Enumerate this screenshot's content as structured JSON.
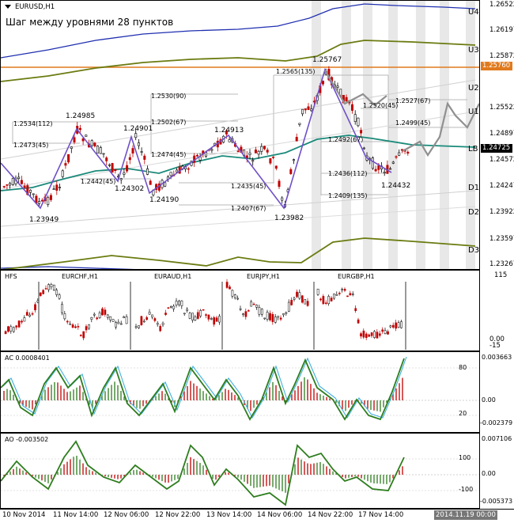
{
  "main": {
    "symbol": "EURUSD,H1",
    "subtitle": "Шаг между уровнями 28 пунктов",
    "axis_prices": [
      "1.26522",
      "1.26197",
      "1.25872",
      "1.25522",
      "1.24897",
      "1.24572",
      "1.24247",
      "1.23922",
      "1.23597",
      "1.23267"
    ],
    "axis_labels": [
      "U4",
      "U3",
      "U2",
      "U1",
      "LB",
      "D1",
      "D2",
      "D3"
    ],
    "current_price": "1.24725",
    "orange_level": "1.25760",
    "extremes": [
      "1.24985",
      "1.24901",
      "1.24913",
      "1.25767",
      "1.23949",
      "1.24302",
      "1.24190",
      "1.23982",
      "1.24432"
    ],
    "level_labels": [
      "1.2534(112)",
      "1.2473(45)",
      "1.2442(45)",
      "1.2530(90)",
      "1.2502(67)",
      "1.2474(45)",
      "1.2435(45)",
      "1.2407(67)",
      "1.2565(135)",
      "1.2520(45)",
      "1.2527(67)",
      "1.2499(45)",
      "1.2492(67)",
      "1.2436(112)",
      "1.2409(135)"
    ]
  },
  "fx": {
    "title": "HFS",
    "pairs": [
      "EURCHF,H1",
      "EURAUD,H1",
      "EURJPY,H1",
      "EURGBP,H1"
    ],
    "axis": [
      "115",
      "0.00",
      "-15"
    ]
  },
  "ac": {
    "title": "AC 0.0008401",
    "axis": [
      "0.003663",
      "80",
      "0.00",
      "20",
      "-0.002379"
    ]
  },
  "ao": {
    "title": "AO -0.003502",
    "axis": [
      "0.007106",
      "100",
      "0.00",
      "-100",
      "-0.005373"
    ]
  },
  "time_axis": [
    "10 Nov 2014",
    "11 Nov 14:00",
    "12 Nov 06:00",
    "12 Nov 22:00",
    "13 Nov 14:00",
    "14 Nov 06:00",
    "14 Nov 22:00",
    "17 Nov 14:00"
  ],
  "time_marker": "2014.11.19 00:00",
  "colors": {
    "up_candle": "#000000",
    "down_candle": "#c00000",
    "ma": "#1a8a7a",
    "band": "#6b7b10",
    "outer_band": "#2030b0",
    "zigzag": "#7050c8",
    "orange": "#e07a1e",
    "forecast": "#909090",
    "ac_fast": "#2e7d1e",
    "ac_signal": "#40b0e0"
  }
}
